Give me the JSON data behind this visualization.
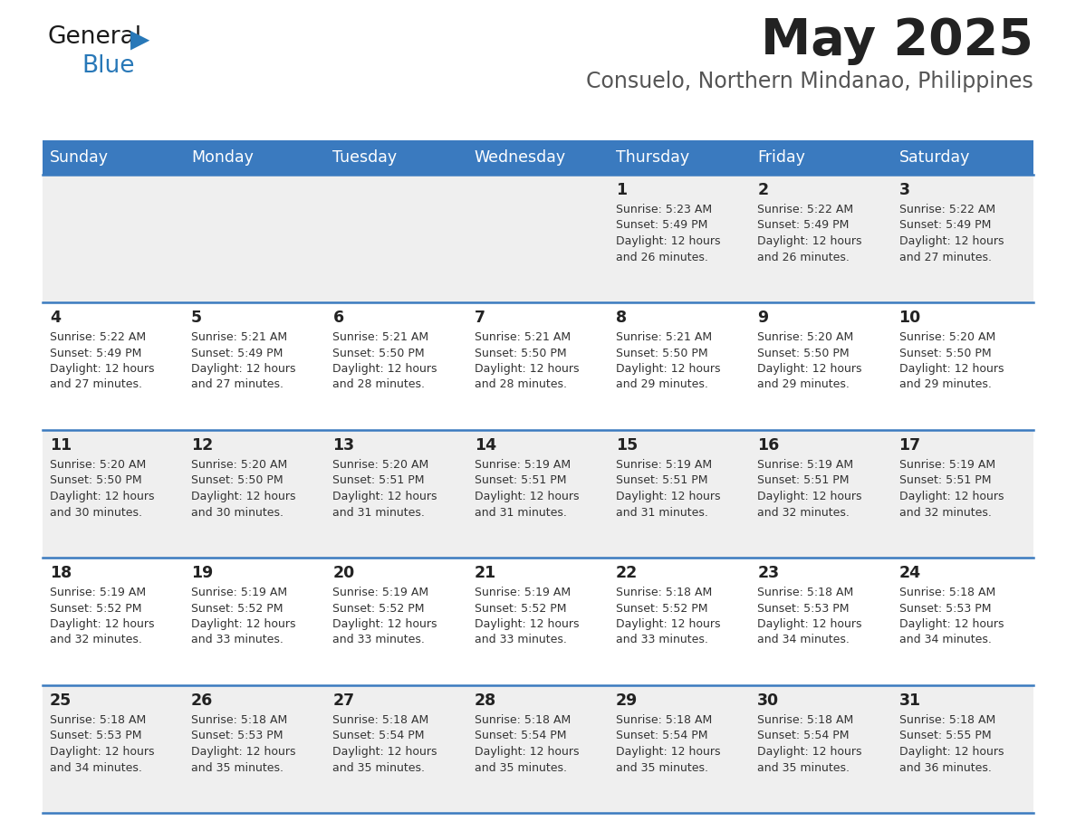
{
  "title": "May 2025",
  "subtitle": "Consuelo, Northern Mindanao, Philippines",
  "days_of_week": [
    "Sunday",
    "Monday",
    "Tuesday",
    "Wednesday",
    "Thursday",
    "Friday",
    "Saturday"
  ],
  "header_bg": "#3a7abf",
  "header_text": "#ffffff",
  "row_bg_odd": "#efefef",
  "row_bg_even": "#ffffff",
  "separator_color": "#3a7abf",
  "day_num_color": "#222222",
  "cell_text_color": "#333333",
  "title_color": "#222222",
  "subtitle_color": "#555555",
  "calendar_data": [
    [
      null,
      null,
      null,
      null,
      {
        "day": 1,
        "sunrise": "5:23 AM",
        "sunset": "5:49 PM",
        "daylight": "12 hours",
        "daylight2": "and 26 minutes."
      },
      {
        "day": 2,
        "sunrise": "5:22 AM",
        "sunset": "5:49 PM",
        "daylight": "12 hours",
        "daylight2": "and 26 minutes."
      },
      {
        "day": 3,
        "sunrise": "5:22 AM",
        "sunset": "5:49 PM",
        "daylight": "12 hours",
        "daylight2": "and 27 minutes."
      }
    ],
    [
      {
        "day": 4,
        "sunrise": "5:22 AM",
        "sunset": "5:49 PM",
        "daylight": "12 hours",
        "daylight2": "and 27 minutes."
      },
      {
        "day": 5,
        "sunrise": "5:21 AM",
        "sunset": "5:49 PM",
        "daylight": "12 hours",
        "daylight2": "and 27 minutes."
      },
      {
        "day": 6,
        "sunrise": "5:21 AM",
        "sunset": "5:50 PM",
        "daylight": "12 hours",
        "daylight2": "and 28 minutes."
      },
      {
        "day": 7,
        "sunrise": "5:21 AM",
        "sunset": "5:50 PM",
        "daylight": "12 hours",
        "daylight2": "and 28 minutes."
      },
      {
        "day": 8,
        "sunrise": "5:21 AM",
        "sunset": "5:50 PM",
        "daylight": "12 hours",
        "daylight2": "and 29 minutes."
      },
      {
        "day": 9,
        "sunrise": "5:20 AM",
        "sunset": "5:50 PM",
        "daylight": "12 hours",
        "daylight2": "and 29 minutes."
      },
      {
        "day": 10,
        "sunrise": "5:20 AM",
        "sunset": "5:50 PM",
        "daylight": "12 hours",
        "daylight2": "and 29 minutes."
      }
    ],
    [
      {
        "day": 11,
        "sunrise": "5:20 AM",
        "sunset": "5:50 PM",
        "daylight": "12 hours",
        "daylight2": "and 30 minutes."
      },
      {
        "day": 12,
        "sunrise": "5:20 AM",
        "sunset": "5:50 PM",
        "daylight": "12 hours",
        "daylight2": "and 30 minutes."
      },
      {
        "day": 13,
        "sunrise": "5:20 AM",
        "sunset": "5:51 PM",
        "daylight": "12 hours",
        "daylight2": "and 31 minutes."
      },
      {
        "day": 14,
        "sunrise": "5:19 AM",
        "sunset": "5:51 PM",
        "daylight": "12 hours",
        "daylight2": "and 31 minutes."
      },
      {
        "day": 15,
        "sunrise": "5:19 AM",
        "sunset": "5:51 PM",
        "daylight": "12 hours",
        "daylight2": "and 31 minutes."
      },
      {
        "day": 16,
        "sunrise": "5:19 AM",
        "sunset": "5:51 PM",
        "daylight": "12 hours",
        "daylight2": "and 32 minutes."
      },
      {
        "day": 17,
        "sunrise": "5:19 AM",
        "sunset": "5:51 PM",
        "daylight": "12 hours",
        "daylight2": "and 32 minutes."
      }
    ],
    [
      {
        "day": 18,
        "sunrise": "5:19 AM",
        "sunset": "5:52 PM",
        "daylight": "12 hours",
        "daylight2": "and 32 minutes."
      },
      {
        "day": 19,
        "sunrise": "5:19 AM",
        "sunset": "5:52 PM",
        "daylight": "12 hours",
        "daylight2": "and 33 minutes."
      },
      {
        "day": 20,
        "sunrise": "5:19 AM",
        "sunset": "5:52 PM",
        "daylight": "12 hours",
        "daylight2": "and 33 minutes."
      },
      {
        "day": 21,
        "sunrise": "5:19 AM",
        "sunset": "5:52 PM",
        "daylight": "12 hours",
        "daylight2": "and 33 minutes."
      },
      {
        "day": 22,
        "sunrise": "5:18 AM",
        "sunset": "5:52 PM",
        "daylight": "12 hours",
        "daylight2": "and 33 minutes."
      },
      {
        "day": 23,
        "sunrise": "5:18 AM",
        "sunset": "5:53 PM",
        "daylight": "12 hours",
        "daylight2": "and 34 minutes."
      },
      {
        "day": 24,
        "sunrise": "5:18 AM",
        "sunset": "5:53 PM",
        "daylight": "12 hours",
        "daylight2": "and 34 minutes."
      }
    ],
    [
      {
        "day": 25,
        "sunrise": "5:18 AM",
        "sunset": "5:53 PM",
        "daylight": "12 hours",
        "daylight2": "and 34 minutes."
      },
      {
        "day": 26,
        "sunrise": "5:18 AM",
        "sunset": "5:53 PM",
        "daylight": "12 hours",
        "daylight2": "and 35 minutes."
      },
      {
        "day": 27,
        "sunrise": "5:18 AM",
        "sunset": "5:54 PM",
        "daylight": "12 hours",
        "daylight2": "and 35 minutes."
      },
      {
        "day": 28,
        "sunrise": "5:18 AM",
        "sunset": "5:54 PM",
        "daylight": "12 hours",
        "daylight2": "and 35 minutes."
      },
      {
        "day": 29,
        "sunrise": "5:18 AM",
        "sunset": "5:54 PM",
        "daylight": "12 hours",
        "daylight2": "and 35 minutes."
      },
      {
        "day": 30,
        "sunrise": "5:18 AM",
        "sunset": "5:54 PM",
        "daylight": "12 hours",
        "daylight2": "and 35 minutes."
      },
      {
        "day": 31,
        "sunrise": "5:18 AM",
        "sunset": "5:55 PM",
        "daylight": "12 hours",
        "daylight2": "and 36 minutes."
      }
    ]
  ]
}
